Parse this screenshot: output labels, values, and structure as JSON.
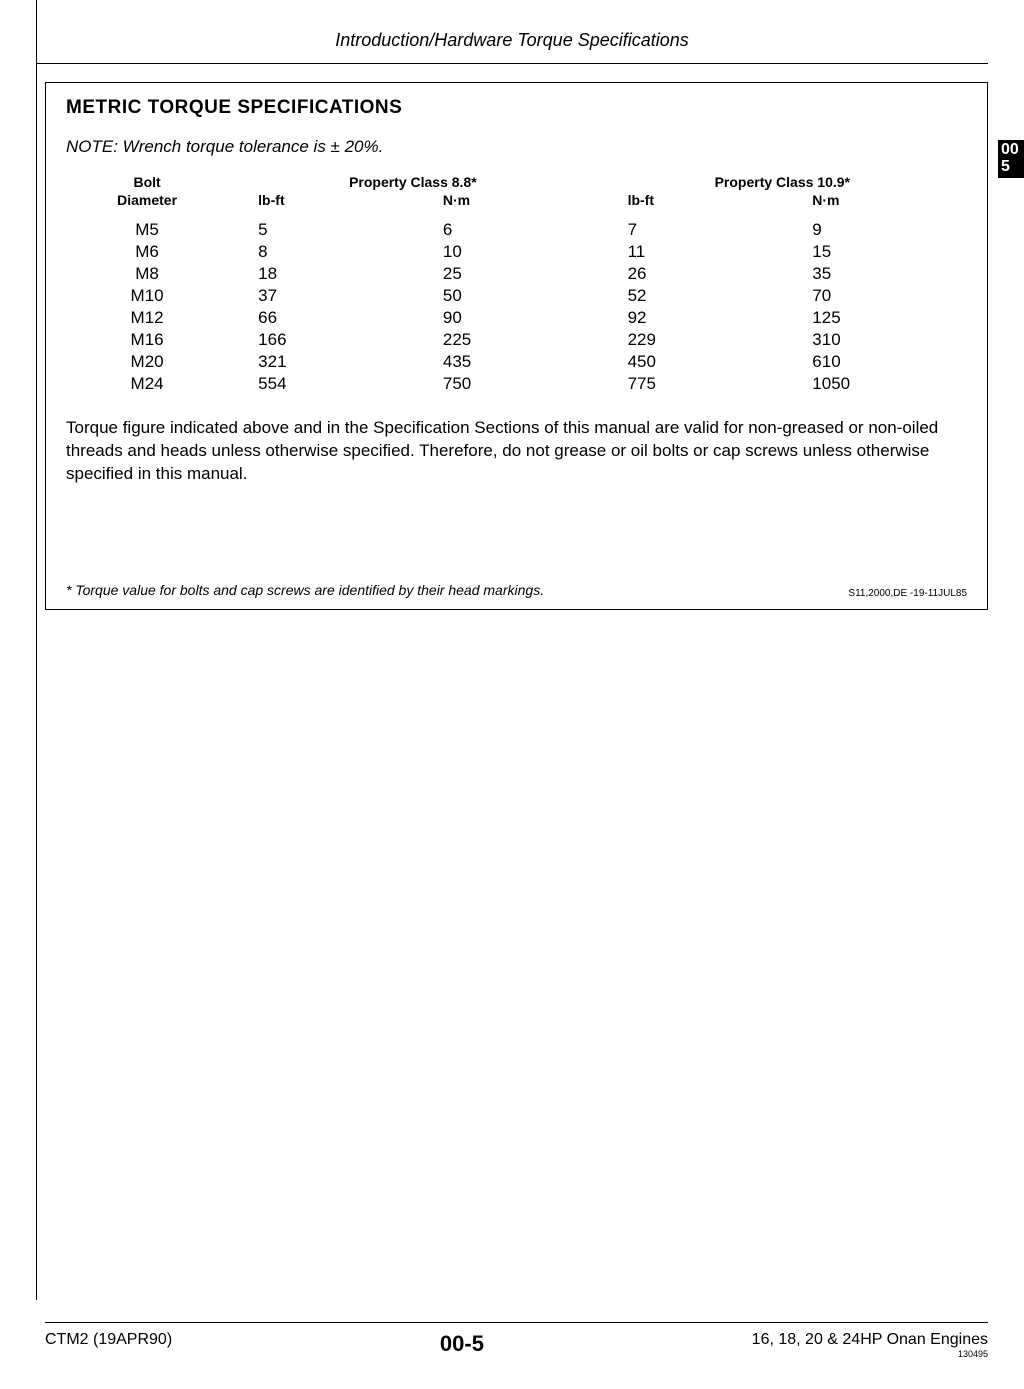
{
  "header": {
    "title": "Introduction/Hardware Torque Specifications"
  },
  "section": {
    "heading": "METRIC TORQUE SPECIFICATIONS",
    "note": "NOTE: Wrench torque tolerance is ± 20%.",
    "table": {
      "col_dia_top": "Bolt",
      "col_dia_bottom": "Diameter",
      "group1": "Property Class 8.8*",
      "group2": "Property Class 10.9*",
      "unit_lbft": "lb-ft",
      "unit_nm": "N·m",
      "rows": [
        {
          "dia": "M5",
          "c1": "5",
          "c2": "6",
          "c3": "7",
          "c4": "9"
        },
        {
          "dia": "M6",
          "c1": "8",
          "c2": "10",
          "c3": "11",
          "c4": "15"
        },
        {
          "dia": "M8",
          "c1": "18",
          "c2": "25",
          "c3": "26",
          "c4": "35"
        },
        {
          "dia": "M10",
          "c1": "37",
          "c2": "50",
          "c3": "52",
          "c4": "70"
        },
        {
          "dia": "M12",
          "c1": "66",
          "c2": "90",
          "c3": "92",
          "c4": "125"
        },
        {
          "dia": "M16",
          "c1": "166",
          "c2": "225",
          "c3": "229",
          "c4": "310"
        },
        {
          "dia": "M20",
          "c1": "321",
          "c2": "435",
          "c3": "450",
          "c4": "610"
        },
        {
          "dia": "M24",
          "c1": "554",
          "c2": "750",
          "c3": "775",
          "c4": "1050"
        }
      ]
    },
    "paragraph": "Torque figure indicated above and in the Specification Sections of this manual are valid for non-greased or non-oiled threads and heads unless otherwise specified. Therefore, do not grease or oil bolts or cap screws unless otherwise specified in this manual.",
    "footnote": "* Torque value for bolts and cap screws are identified by their head markings.",
    "doc_code": "S11,2000,DE    -19-11JUL85"
  },
  "side_tab": {
    "line1": "00",
    "line2": "5"
  },
  "footer": {
    "left": "CTM2 (19APR90)",
    "center": "00-5",
    "right": "16, 18, 20 & 24HP Onan Engines",
    "micro": "130495"
  }
}
